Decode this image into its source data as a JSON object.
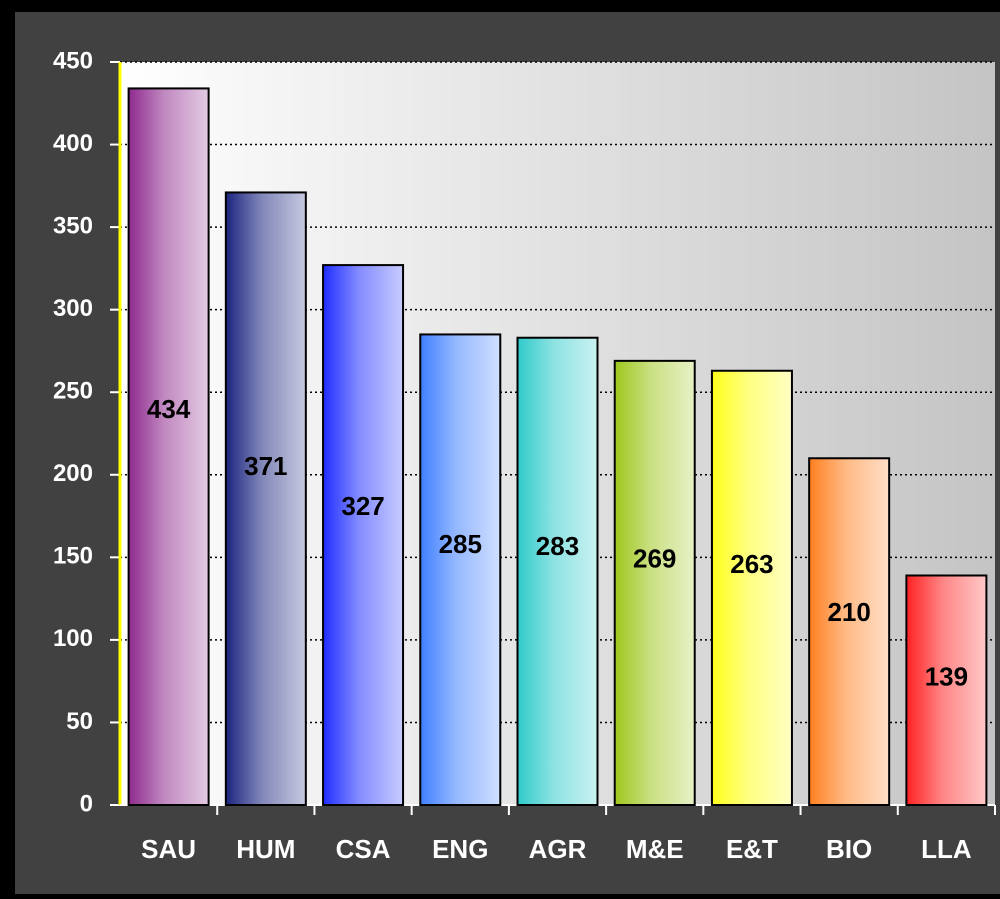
{
  "chart_data": {
    "type": "bar",
    "categories": [
      "SAU",
      "HUM",
      "CSA",
      "ENG",
      "AGR",
      "M&E",
      "E&T",
      "BIO",
      "LLA"
    ],
    "values": [
      434,
      371,
      327,
      285,
      283,
      269,
      263,
      210,
      139
    ],
    "colors": [
      "#8e2a8e",
      "#1c2580",
      "#1f2dff",
      "#3f7fff",
      "#2fcaca",
      "#9ec61c",
      "#ffff1a",
      "#ff7f1f",
      "#ff2222"
    ],
    "ylim": [
      0,
      450
    ],
    "yticks": [
      0,
      50,
      100,
      150,
      200,
      250,
      300,
      350,
      400,
      450
    ],
    "grid": true
  }
}
